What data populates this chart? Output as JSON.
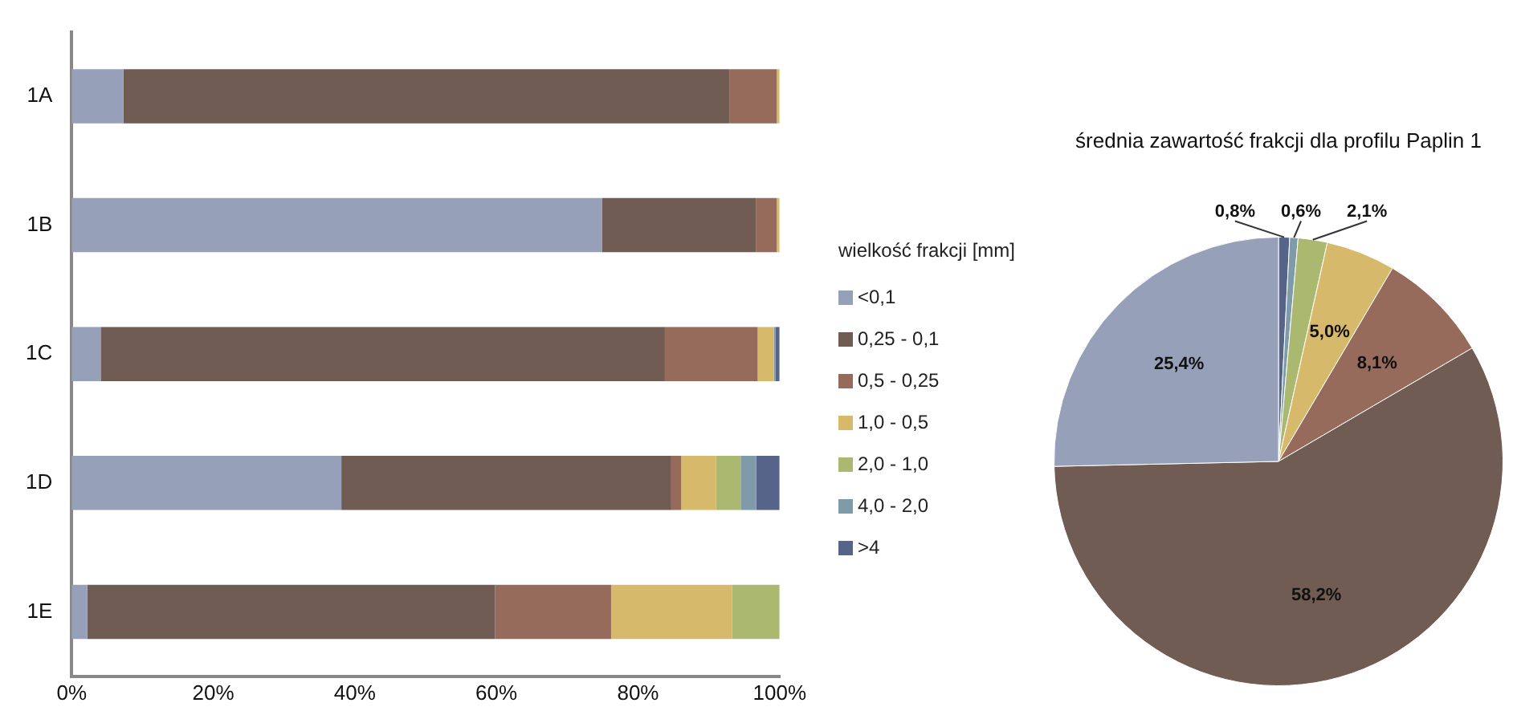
{
  "chart_data": [
    {
      "type": "bar",
      "orientation": "horizontal",
      "stacked": true,
      "categories": [
        "1A",
        "1B",
        "1C",
        "1D",
        "1E"
      ],
      "legend": "right",
      "legend_title": "wielkość frakcji [mm]",
      "xlim": [
        0,
        100
      ],
      "xticks": [
        {
          "value": 0,
          "label": "0%"
        },
        {
          "value": 20,
          "label": "20%"
        },
        {
          "value": 40,
          "label": "40%"
        },
        {
          "value": 60,
          "label": "60%"
        },
        {
          "value": 80,
          "label": "80%"
        },
        {
          "value": 100,
          "label": "100%"
        }
      ],
      "series": [
        {
          "name": "<0,1",
          "color": "#96a0b8",
          "values": [
            7.3,
            74.9,
            4.1,
            38.1,
            2.2
          ]
        },
        {
          "name": "0,25 - 0,1",
          "color": "#705c53",
          "values": [
            85.6,
            21.8,
            79.7,
            46.6,
            57.6
          ]
        },
        {
          "name": "0,5 - 0,25",
          "color": "#976b5b",
          "values": [
            6.7,
            2.9,
            13.1,
            1.4,
            16.4
          ]
        },
        {
          "name": "1,0 - 0,5",
          "color": "#d6b96a",
          "values": [
            0.4,
            0.4,
            2.3,
            4.9,
            17.1
          ]
        },
        {
          "name": "2,0 - 1,0",
          "color": "#abb86f",
          "values": [
            null,
            null,
            null,
            3.5,
            6.7
          ]
        },
        {
          "name": "4,0 - 2,0",
          "color": "#7f9aa8",
          "values": [
            null,
            null,
            0.2,
            2.2,
            null
          ]
        },
        {
          "name": ">4",
          "color": "#56648a",
          "values": [
            null,
            null,
            0.6,
            3.3,
            null
          ]
        }
      ]
    },
    {
      "type": "pie",
      "title": "średnia zawartość frakcji dla profilu Paplin 1",
      "categories": [
        null,
        null,
        null,
        null,
        null,
        null,
        null
      ],
      "values": [
        0.8,
        0.6,
        2.1,
        5.0,
        8.1,
        58.2,
        25.4
      ],
      "colors": [
        "#56648a",
        "#7f9aa8",
        "#abb86f",
        "#d6b96a",
        "#976b5b",
        "#705c53",
        "#96a0b8"
      ],
      "value_labels": [
        "0,8%",
        "0,6%",
        "2,1%",
        "5,0%",
        "8,1%",
        "58,2%",
        "25,4%"
      ]
    }
  ]
}
